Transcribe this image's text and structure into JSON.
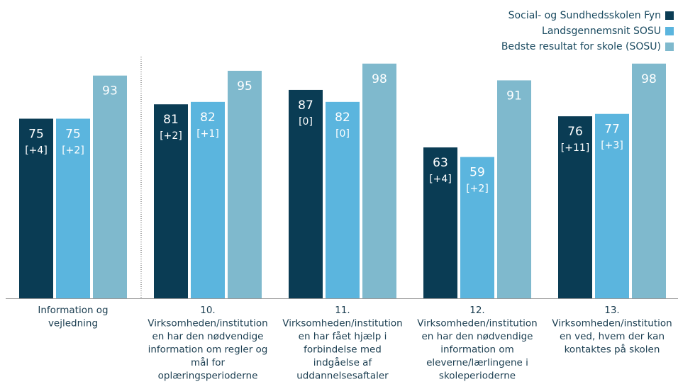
{
  "chart_data": {
    "type": "bar",
    "categories": [
      [
        "Information og",
        "vejledning"
      ],
      [
        "10.",
        "Virksomheden/institution",
        "en har den nødvendige",
        "information om regler og",
        "mål for",
        "oplæringsperioderne"
      ],
      [
        "11.",
        "Virksomheden/institution",
        "en har fået hjælp i",
        "forbindelse med",
        "indgåelse af",
        "uddannelsesaftaler"
      ],
      [
        "12.",
        "Virksomheden/institution",
        "en har den nødvendige",
        "information om",
        "eleverne/lærlingene i",
        "skoleperioderne"
      ],
      [
        "13.",
        "Virksomheden/institution",
        "en ved, hvem der kan",
        "kontaktes på skolen"
      ]
    ],
    "series": [
      {
        "name": "Social- og Sundhedsskolen Fyn",
        "color": "#0a3c54",
        "values": [
          75,
          81,
          87,
          63,
          76
        ],
        "changes": [
          "[+4]",
          "[+2]",
          "[0]",
          "[+4]",
          "[+11]"
        ]
      },
      {
        "name": "Landsgennemsnit SOSU",
        "color": "#5bb5de",
        "values": [
          75,
          82,
          82,
          59,
          77
        ],
        "changes": [
          "[+2]",
          "[+1]",
          "[0]",
          "[+2]",
          "[+3]"
        ]
      },
      {
        "name": "Bedste resultat for skole (SOSU)",
        "color": "#7fb9cd",
        "values": [
          93,
          95,
          98,
          91,
          98
        ]
      }
    ],
    "ylim": [
      0,
      100
    ],
    "legend": "top-right"
  }
}
